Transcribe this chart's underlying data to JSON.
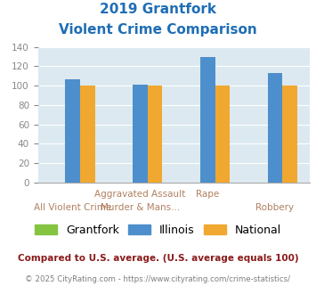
{
  "title_line1": "2019 Grantfork",
  "title_line2": "Violent Crime Comparison",
  "cat_labels_top": [
    "",
    "Aggravated Assault",
    "Rape",
    ""
  ],
  "cat_labels_bot": [
    "All Violent Crime",
    "Murder & Mans...",
    "",
    "Robbery"
  ],
  "grantfork_values": [
    0,
    0,
    0,
    0
  ],
  "illinois_values": [
    107,
    101,
    130,
    113
  ],
  "national_values": [
    100,
    100,
    100,
    100
  ],
  "grantfork_color": "#84c441",
  "illinois_color": "#4d8fcc",
  "national_color": "#f0a830",
  "title_color": "#1f6eb5",
  "bg_color": "#dce9f0",
  "ylim": [
    0,
    140
  ],
  "yticks": [
    0,
    20,
    40,
    60,
    80,
    100,
    120,
    140
  ],
  "footnote1": "Compared to U.S. average. (U.S. average equals 100)",
  "footnote2": "© 2025 CityRating.com - https://www.cityrating.com/crime-statistics/",
  "footnote1_color": "#8b1a1a",
  "footnote2_color": "#7f7f7f",
  "label_color": "#b08060",
  "tick_color": "#888888"
}
